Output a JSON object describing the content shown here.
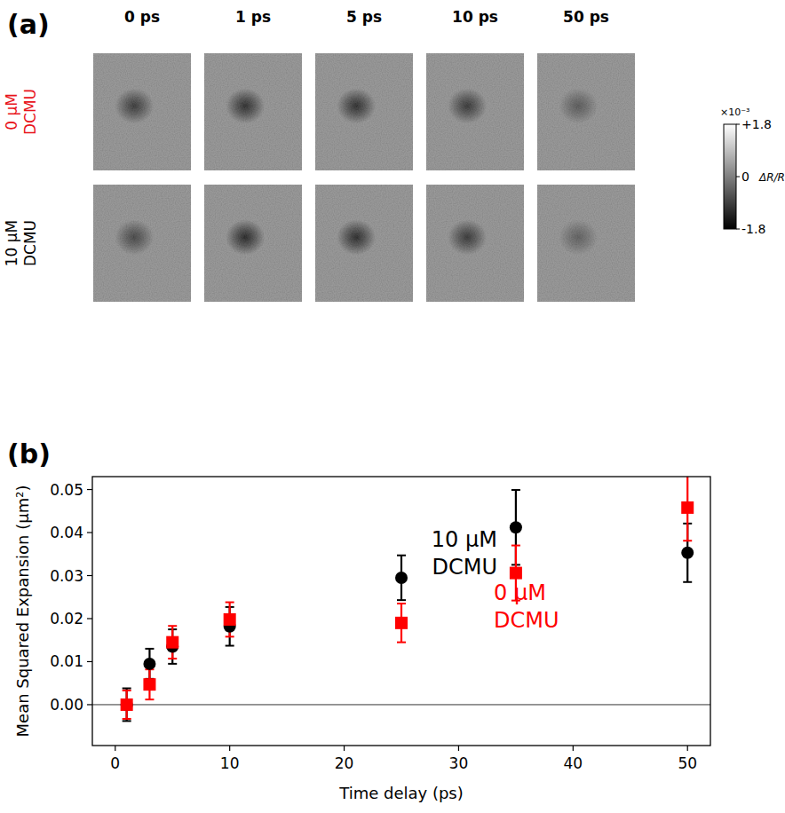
{
  "chart_data": [
    {
      "type": "image_grid",
      "panel": "(a)",
      "columns": [
        "0 ps",
        "1 ps",
        "5 ps",
        "10 ps",
        "50 ps"
      ],
      "rows": [
        "0 μM DCMU",
        "10 μM DCMU"
      ],
      "colors": [
        "#e8141b",
        "#000000"
      ],
      "values": [
        [
          -1.3,
          -1.5,
          -1.5,
          -1.35,
          -0.8
        ],
        [
          -1.1,
          -1.6,
          -1.55,
          -1.35,
          -0.7
        ]
      ],
      "colorbar": {
        "range": [
          -1.8,
          1.8
        ],
        "ticks": [
          {
            "value": 1.8,
            "label": "+1.8"
          },
          0,
          -1.8
        ],
        "label": "ΔR/R",
        "scale_label": "×10⁻³"
      }
    },
    {
      "type": "scatter",
      "panel": "(b)",
      "x_label": "Time delay (ps)",
      "y_label": "Mean Squared Expansion (μm²)",
      "x": [
        1,
        3,
        5,
        10,
        25,
        35,
        50
      ],
      "xlim": [
        -2,
        52
      ],
      "xticks": [
        0,
        10,
        20,
        30,
        40,
        50
      ],
      "ylim": [
        -0.0095,
        0.053
      ],
      "yticks": [
        {
          "value": 0,
          "label": "0.00"
        },
        0.01,
        0.02,
        0.03,
        0.04,
        0.05
      ],
      "hline": 0,
      "series": [
        {
          "name": "10 μM DCMU",
          "color": "#000000",
          "marker": "circle",
          "values": [
            0.0,
            0.0095,
            0.0135,
            0.0182,
            0.0295,
            0.0412,
            0.0353
          ],
          "errors": [
            0.0038,
            0.0035,
            0.004,
            0.0045,
            0.0052,
            0.0087,
            0.0068
          ]
        },
        {
          "name": "0 μM DCMU",
          "color": "#ff0000",
          "marker": "square",
          "values": [
            0.0,
            0.0047,
            0.0145,
            0.0198,
            0.019,
            0.0306,
            0.0458
          ],
          "errors": [
            0.0033,
            0.0035,
            0.0038,
            0.004,
            0.0045,
            0.0064,
            0.0077
          ]
        }
      ]
    }
  ]
}
